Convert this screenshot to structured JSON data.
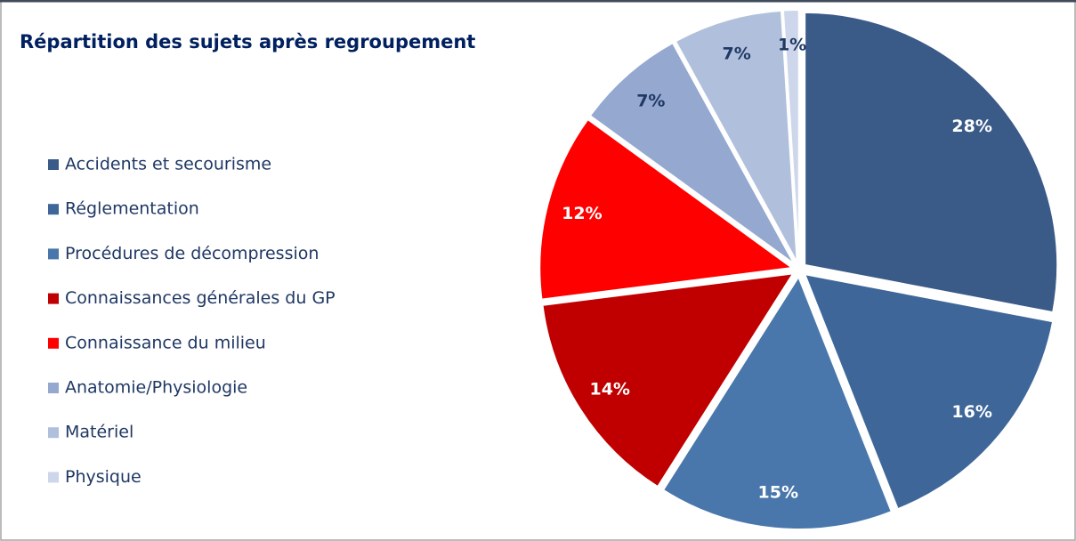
{
  "chart_data": {
    "type": "pie",
    "title": "Répartition des sujets après regroupement",
    "categories": [
      "Accidents et secourisme",
      "Réglementation",
      "Procédures de décompression",
      "Connaissances générales du GP",
      "Connaissance du milieu",
      "Anatomie/Physiologie",
      "Matériel",
      "Physique"
    ],
    "values": [
      28,
      16,
      15,
      14,
      12,
      7,
      7,
      1
    ],
    "value_labels": [
      "28%",
      "16%",
      "15%",
      "14%",
      "12%",
      "7%",
      "7%",
      "1%"
    ],
    "colors": [
      "#3a5a88",
      "#3e6699",
      "#4977ab",
      "#c00000",
      "#ff0000",
      "#94a8d0",
      "#b0c0dc",
      "#cdd6ea"
    ],
    "label_colors": [
      "#ffffff",
      "#ffffff",
      "#ffffff",
      "#ffffff",
      "#ffffff",
      "#1f3864",
      "#1f3864",
      "#1f3864"
    ],
    "legend": "left"
  }
}
